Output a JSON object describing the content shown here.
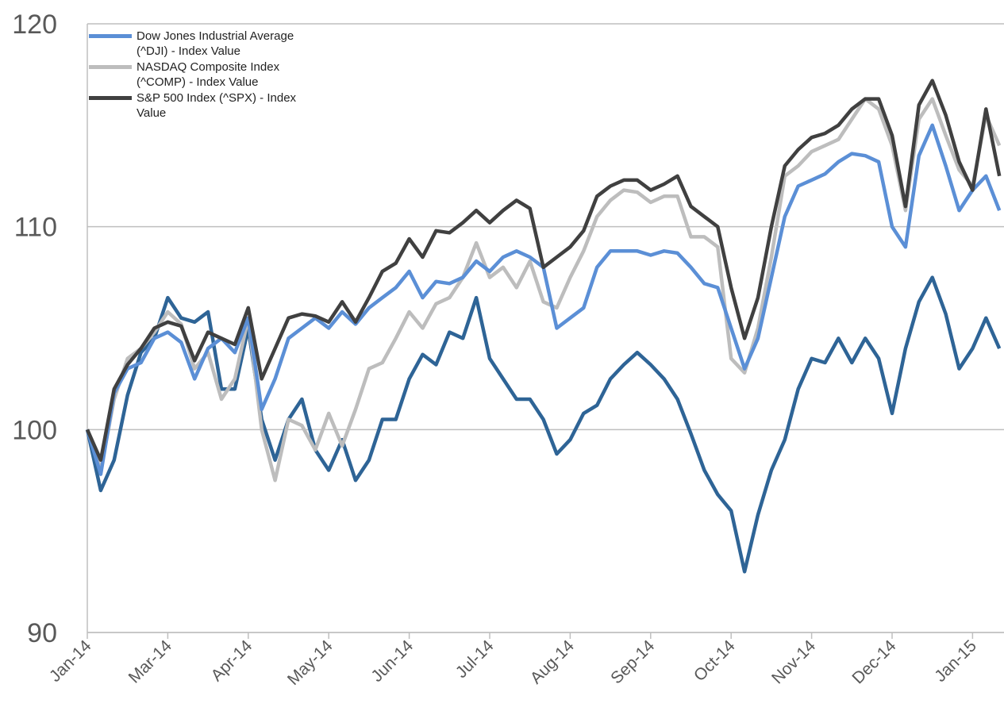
{
  "chart_data": {
    "type": "line",
    "categories": [
      "Jan-14",
      null,
      null,
      null,
      null,
      null,
      "Mar-14",
      null,
      null,
      null,
      null,
      null,
      "Apr-14",
      null,
      null,
      null,
      null,
      null,
      "May-14",
      null,
      null,
      null,
      null,
      null,
      "Jun-14",
      null,
      null,
      null,
      null,
      null,
      "Jul-14",
      null,
      null,
      null,
      null,
      null,
      "Aug-14",
      null,
      null,
      null,
      null,
      null,
      "Sep-14",
      null,
      null,
      null,
      null,
      null,
      "Oct-14",
      null,
      null,
      null,
      null,
      null,
      "Nov-14",
      null,
      null,
      null,
      null,
      null,
      "Dec-14",
      null,
      null,
      null,
      null,
      null,
      "Jan-15",
      null,
      null
    ],
    "series": [
      {
        "color": "#2e6496",
        "values": [
          100,
          97,
          98.5,
          101.7,
          103.8,
          104.5,
          106.5,
          105.5,
          105.3,
          105.8,
          102,
          102,
          105,
          100.5,
          98.5,
          100.5,
          101.5,
          99,
          98,
          99.5,
          97.5,
          98.5,
          100.5,
          100.5,
          102.5,
          103.7,
          103.2,
          104.8,
          104.5,
          106.5,
          103.5,
          102.5,
          101.5,
          101.5,
          100.5,
          98.8,
          99.5,
          100.8,
          101.2,
          102.5,
          103.2,
          103.8,
          103.2,
          102.5,
          101.5,
          99.8,
          98,
          96.8,
          96,
          93,
          95.8,
          98,
          99.5,
          102,
          103.5,
          103.3,
          104.5,
          103.3,
          104.5,
          103.5,
          100.8,
          104,
          106.3,
          107.5,
          105.7,
          103,
          104,
          105.5,
          104
        ]
      },
      {
        "name": "NASDAQ Composite Index (^COMP) - Index Value",
        "color": "#bdbdbd",
        "values": [
          100,
          98,
          101.5,
          103.5,
          104,
          104.8,
          105.8,
          105.2,
          103,
          103.8,
          101.5,
          102.5,
          105.5,
          100,
          97.5,
          100.5,
          100.2,
          99,
          100.8,
          99.2,
          101,
          103,
          103.3,
          104.5,
          105.8,
          105,
          106.2,
          106.5,
          107.5,
          109.2,
          107.5,
          108,
          107,
          108.3,
          106.3,
          106,
          107.5,
          108.8,
          110.5,
          111.3,
          111.8,
          111.7,
          111.2,
          111.5,
          111.5,
          109.5,
          109.5,
          109,
          103.5,
          102.8,
          105,
          108.5,
          112.5,
          113,
          113.7,
          114,
          114.3,
          115.3,
          116.3,
          115.8,
          114,
          110.8,
          115.3,
          116.3,
          114.5,
          112.8,
          112,
          115.5,
          114
        ]
      },
      {
        "name": "Dow Jones Industrial Average (^DJI) - Index Value",
        "color": "#5b8fd6",
        "values": [
          100,
          97.8,
          101.8,
          103,
          103.3,
          104.5,
          104.8,
          104.3,
          102.5,
          104,
          104.5,
          103.8,
          105.5,
          101,
          102.5,
          104.5,
          105,
          105.5,
          105,
          105.8,
          105.2,
          106,
          106.5,
          107,
          107.8,
          106.5,
          107.3,
          107.2,
          107.5,
          108.3,
          107.8,
          108.5,
          108.8,
          108.5,
          108,
          105,
          105.5,
          106,
          108,
          108.8,
          108.8,
          108.8,
          108.6,
          108.8,
          108.7,
          108,
          107.2,
          107,
          105,
          103,
          104.5,
          107.5,
          110.5,
          112,
          112.3,
          112.6,
          113.2,
          113.6,
          113.5,
          113.2,
          110,
          109,
          113.5,
          115,
          113,
          110.8,
          111.8,
          112.5,
          110.8
        ]
      },
      {
        "name": "S&P 500 Index (^SPX) - Index Value",
        "color": "#404040",
        "values": [
          100,
          98.5,
          102,
          103.2,
          104,
          105,
          105.3,
          105.1,
          103.4,
          104.8,
          104.5,
          104.2,
          106,
          102.5,
          104,
          105.5,
          105.7,
          105.6,
          105.3,
          106.3,
          105.3,
          106.5,
          107.8,
          108.2,
          109.4,
          108.5,
          109.8,
          109.7,
          110.2,
          110.8,
          110.2,
          110.8,
          111.3,
          110.9,
          108,
          108.5,
          109,
          109.8,
          111.5,
          112,
          112.3,
          112.3,
          111.8,
          112.1,
          112.5,
          111,
          110.5,
          110,
          107,
          104.5,
          106.5,
          110,
          113,
          113.8,
          114.4,
          114.6,
          115,
          115.8,
          116.3,
          116.3,
          114.5,
          111,
          116,
          117.2,
          115.5,
          113.2,
          111.8,
          115.8,
          112.5
        ]
      }
    ],
    "legend_order": [
      2,
      1,
      3
    ],
    "ylim": [
      90,
      120
    ],
    "yticks": [
      90,
      100,
      110,
      120
    ],
    "grid": true,
    "legend": "upper left"
  }
}
